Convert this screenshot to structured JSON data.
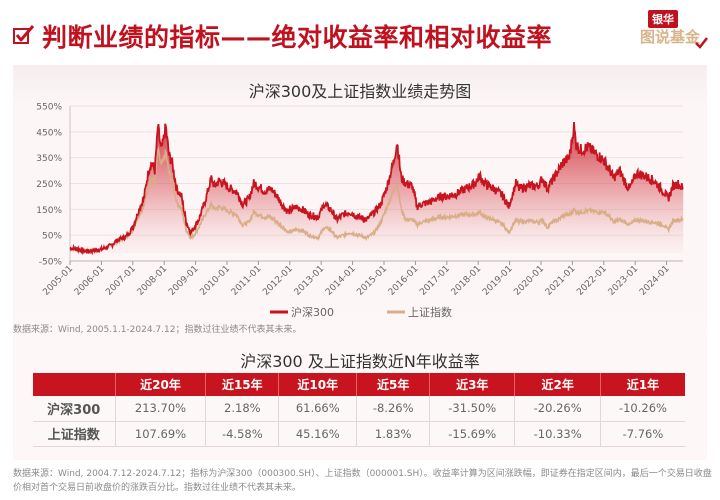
{
  "header": {
    "title": "判断业绩的指标——绝对收益率和相对收益率",
    "logo_top": "银华",
    "logo_bottom": "图说基金",
    "icon": "checkbox-checked-icon"
  },
  "chart": {
    "title": "沪深300及上证指数业绩走势图",
    "source": "数据来源：Wind, 2005.1.1-2024.7.12；指数过往业绩不代表其未来。",
    "legend": [
      "沪深300",
      "上证指数"
    ]
  },
  "table": {
    "title": "沪深300 及上证指数近N年收益率",
    "columns": [
      "",
      "近20年",
      "近15年",
      "近10年",
      "近5年",
      "近3年",
      "近2年",
      "近1年"
    ],
    "rows": [
      {
        "name": "沪深300",
        "values": [
          "213.70%",
          "2.18%",
          "61.66%",
          "-8.26%",
          "-31.50%",
          "-20.26%",
          "-10.26%"
        ]
      },
      {
        "name": "上证指数",
        "values": [
          "107.69%",
          "-4.58%",
          "45.16%",
          "1.83%",
          "-15.69%",
          "-10.33%",
          "-7.76%"
        ]
      }
    ],
    "source": "数据来源：Wind, 2004.7.12-2024.7.12；指标为沪深300（000300.SH）、上证指数（000001.SH）。收益率计算为区间涨跌幅，即证券在指定区间内，最后一个交易日收盘价相对首个交易日前收盘价的涨跌百分比。指数过往业绩不代表其未来。"
  },
  "colors": {
    "brand_red": "#c0111f",
    "hs300_line": "#c8141f",
    "sh_line": "#d9ad86",
    "logo_gold": "#d8b48c"
  },
  "chart_data": {
    "type": "area",
    "title": "沪深300及上证指数业绩走势图",
    "xlabel": "",
    "ylabel": "",
    "ylim": [
      -50,
      550
    ],
    "yticks": [
      "-50%",
      "50%",
      "150%",
      "250%",
      "350%",
      "450%",
      "550%"
    ],
    "xticks": [
      "2005-01",
      "2006-01",
      "2007-01",
      "2008-01",
      "2009-01",
      "2010-01",
      "2011-01",
      "2012-01",
      "2013-01",
      "2014-01",
      "2015-01",
      "2016-01",
      "2017-01",
      "2018-01",
      "2019-01",
      "2020-01",
      "2021-01",
      "2022-01",
      "2023-01",
      "2024-01"
    ],
    "legend_position": "bottom",
    "grid": true,
    "series": [
      {
        "name": "沪深300",
        "color": "#c8141f",
        "x": [
          2005.0,
          2005.3,
          2005.5,
          2005.8,
          2006.0,
          2006.3,
          2006.5,
          2006.8,
          2007.0,
          2007.2,
          2007.35,
          2007.5,
          2007.6,
          2007.7,
          2007.8,
          2007.9,
          2007.95,
          2008.05,
          2008.15,
          2008.25,
          2008.4,
          2008.55,
          2008.7,
          2008.85,
          2008.95,
          2009.1,
          2009.3,
          2009.5,
          2009.6,
          2009.75,
          2009.9,
          2010.1,
          2010.3,
          2010.5,
          2010.7,
          2010.85,
          2011.0,
          2011.2,
          2011.4,
          2011.6,
          2011.8,
          2011.95,
          2012.2,
          2012.4,
          2012.6,
          2012.9,
          2013.1,
          2013.3,
          2013.5,
          2013.7,
          2013.9,
          2014.2,
          2014.45,
          2014.7,
          2014.9,
          2015.1,
          2015.3,
          2015.42,
          2015.55,
          2015.7,
          2015.9,
          2016.05,
          2016.2,
          2016.5,
          2016.8,
          2017.0,
          2017.3,
          2017.6,
          2017.9,
          2018.05,
          2018.2,
          2018.5,
          2018.8,
          2018.97,
          2019.2,
          2019.3,
          2019.6,
          2019.9,
          2020.05,
          2020.2,
          2020.35,
          2020.55,
          2020.7,
          2020.9,
          2021.05,
          2021.12,
          2021.25,
          2021.5,
          2021.8,
          2022.0,
          2022.2,
          2022.3,
          2022.5,
          2022.7,
          2022.82,
          2023.05,
          2023.3,
          2023.6,
          2023.9,
          2024.05,
          2024.2,
          2024.35,
          2024.53
        ],
        "values": [
          0,
          -5,
          -12,
          -8,
          -5,
          10,
          30,
          45,
          80,
          150,
          190,
          300,
          330,
          300,
          470,
          380,
          400,
          470,
          360,
          330,
          230,
          200,
          100,
          60,
          80,
          110,
          180,
          270,
          240,
          260,
          250,
          230,
          220,
          170,
          190,
          250,
          240,
          220,
          230,
          200,
          160,
          140,
          160,
          150,
          130,
          120,
          170,
          150,
          110,
          130,
          140,
          120,
          110,
          140,
          170,
          240,
          330,
          410,
          270,
          250,
          240,
          160,
          170,
          180,
          200,
          200,
          210,
          230,
          250,
          280,
          250,
          230,
          200,
          160,
          250,
          230,
          240,
          240,
          270,
          230,
          260,
          300,
          330,
          350,
          470,
          400,
          380,
          390,
          360,
          340,
          300,
          270,
          300,
          250,
          230,
          290,
          280,
          260,
          220,
          190,
          240,
          250,
          230
        ]
      },
      {
        "name": "上证指数",
        "color": "#d9ad86",
        "x": [
          2005.0,
          2005.3,
          2005.5,
          2005.8,
          2006.0,
          2006.3,
          2006.5,
          2006.8,
          2007.0,
          2007.2,
          2007.35,
          2007.5,
          2007.6,
          2007.7,
          2007.8,
          2007.9,
          2007.95,
          2008.05,
          2008.15,
          2008.25,
          2008.4,
          2008.55,
          2008.7,
          2008.85,
          2008.95,
          2009.1,
          2009.3,
          2009.5,
          2009.6,
          2009.75,
          2009.9,
          2010.1,
          2010.3,
          2010.5,
          2010.7,
          2010.85,
          2011.0,
          2011.2,
          2011.4,
          2011.6,
          2011.8,
          2011.95,
          2012.2,
          2012.4,
          2012.6,
          2012.9,
          2013.1,
          2013.3,
          2013.5,
          2013.7,
          2013.9,
          2014.2,
          2014.45,
          2014.7,
          2014.9,
          2015.1,
          2015.3,
          2015.42,
          2015.55,
          2015.7,
          2015.9,
          2016.05,
          2016.2,
          2016.5,
          2016.8,
          2017.0,
          2017.3,
          2017.6,
          2017.9,
          2018.05,
          2018.2,
          2018.5,
          2018.8,
          2018.97,
          2019.2,
          2019.3,
          2019.6,
          2019.9,
          2020.05,
          2020.2,
          2020.35,
          2020.55,
          2020.7,
          2020.9,
          2021.05,
          2021.12,
          2021.25,
          2021.5,
          2021.8,
          2022.0,
          2022.2,
          2022.3,
          2022.5,
          2022.7,
          2022.82,
          2023.05,
          2023.3,
          2023.6,
          2023.9,
          2024.05,
          2024.2,
          2024.35,
          2024.53
        ],
        "values": [
          0,
          -5,
          -12,
          -8,
          -5,
          8,
          25,
          40,
          70,
          130,
          160,
          240,
          270,
          250,
          380,
          320,
          330,
          370,
          290,
          260,
          180,
          150,
          70,
          40,
          50,
          80,
          130,
          170,
          150,
          160,
          150,
          140,
          130,
          90,
          100,
          140,
          130,
          120,
          120,
          100,
          80,
          60,
          70,
          70,
          50,
          40,
          80,
          70,
          40,
          50,
          60,
          50,
          40,
          60,
          100,
          160,
          220,
          250,
          150,
          110,
          110,
          90,
          100,
          110,
          120,
          120,
          125,
          130,
          130,
          140,
          120,
          110,
          90,
          60,
          110,
          100,
          105,
          100,
          110,
          80,
          100,
          110,
          125,
          130,
          150,
          140,
          140,
          145,
          140,
          140,
          120,
          100,
          110,
          100,
          90,
          110,
          105,
          100,
          90,
          70,
          105,
          110,
          110
        ]
      }
    ]
  }
}
